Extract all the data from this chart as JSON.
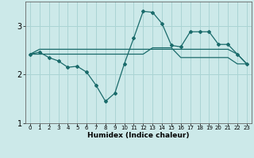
{
  "xlabel": "Humidex (Indice chaleur)",
  "bg_color": "#cce9e9",
  "grid_color": "#aad4d4",
  "line_color": "#1a6b6b",
  "xlim": [
    -0.5,
    23.5
  ],
  "ylim": [
    1.0,
    3.5
  ],
  "yticks": [
    1,
    2,
    3
  ],
  "xticks": [
    0,
    1,
    2,
    3,
    4,
    5,
    6,
    7,
    8,
    9,
    10,
    11,
    12,
    13,
    14,
    15,
    16,
    17,
    18,
    19,
    20,
    21,
    22,
    23
  ],
  "line1_x": [
    0,
    1,
    2,
    3,
    4,
    5,
    6,
    7,
    8,
    9,
    10,
    11,
    12,
    13,
    14,
    15,
    16,
    17,
    18,
    19,
    20,
    21,
    22,
    23
  ],
  "line1_y": [
    2.42,
    2.52,
    2.52,
    2.52,
    2.52,
    2.52,
    2.52,
    2.52,
    2.52,
    2.52,
    2.52,
    2.52,
    2.52,
    2.52,
    2.52,
    2.52,
    2.52,
    2.52,
    2.52,
    2.52,
    2.52,
    2.52,
    2.42,
    2.22
  ],
  "line2_x": [
    0,
    1,
    2,
    3,
    4,
    5,
    6,
    7,
    8,
    9,
    10,
    11,
    12,
    13,
    14,
    15,
    16,
    17,
    18,
    19,
    20,
    21,
    22,
    23
  ],
  "line2_y": [
    2.42,
    2.46,
    2.35,
    2.28,
    2.15,
    2.17,
    2.05,
    1.78,
    1.45,
    1.62,
    2.22,
    2.75,
    3.3,
    3.28,
    3.05,
    2.6,
    2.57,
    2.88,
    2.88,
    2.88,
    2.62,
    2.62,
    2.42,
    2.22
  ],
  "line3_x": [
    0,
    1,
    2,
    3,
    4,
    5,
    6,
    7,
    8,
    9,
    10,
    11,
    12,
    13,
    14,
    15,
    16,
    17,
    18,
    19,
    20,
    21,
    22,
    23
  ],
  "line3_y": [
    2.42,
    2.42,
    2.42,
    2.42,
    2.42,
    2.42,
    2.42,
    2.42,
    2.42,
    2.42,
    2.42,
    2.42,
    2.42,
    2.55,
    2.55,
    2.55,
    2.35,
    2.35,
    2.35,
    2.35,
    2.35,
    2.35,
    2.22,
    2.22
  ]
}
